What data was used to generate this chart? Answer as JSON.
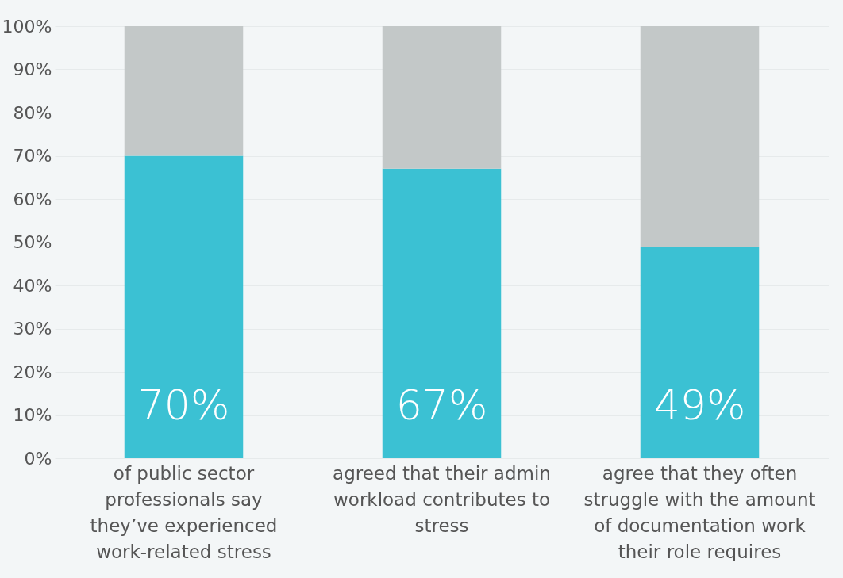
{
  "chart_data": {
    "type": "bar",
    "stacked": true,
    "categories": [
      "of public sector professionals say they’ve experienced work-related stress",
      "agreed that their admin workload contributes to stress",
      "agree that they often struggle with the amount of documentation work their role requires"
    ],
    "series": [
      {
        "color": "#3bc1d3",
        "values": [
          70,
          67,
          49
        ],
        "value_labels": [
          "70%",
          "67%",
          "49%"
        ]
      },
      {
        "color": "#c3c8c8",
        "values": [
          30,
          33,
          51
        ]
      }
    ],
    "ylim": [
      0,
      100
    ],
    "yticks": [
      {
        "value": 0,
        "label": "0%"
      },
      {
        "value": 10,
        "label": "10%"
      },
      {
        "value": 20,
        "label": "20%"
      },
      {
        "value": 30,
        "label": "30%"
      },
      {
        "value": 40,
        "label": "40%"
      },
      {
        "value": 50,
        "label": "50%"
      },
      {
        "value": 60,
        "label": "60%"
      },
      {
        "value": 70,
        "label": "70%"
      },
      {
        "value": 80,
        "label": "80%"
      },
      {
        "value": 90,
        "label": "90%"
      },
      {
        "value": 100,
        "label": "100%"
      }
    ],
    "grid": "y",
    "legend": false
  }
}
